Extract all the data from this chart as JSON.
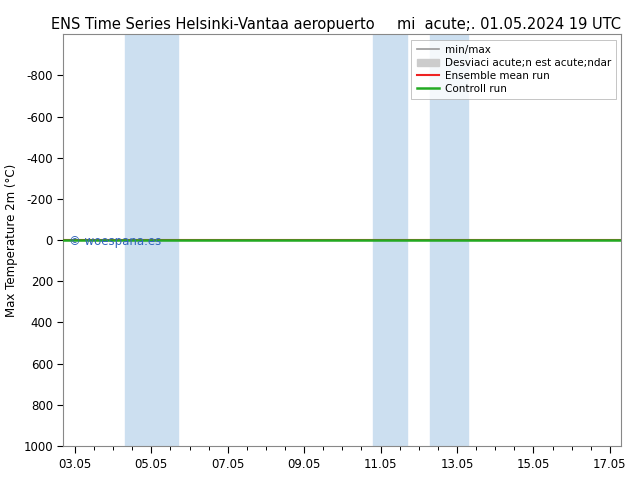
{
  "title": "ENS Time Series Helsinki-Vantaa aeropuerto",
  "title_right": "mi  acute;. 01.05.2024 19 UTC",
  "ylabel": "Max Temperature 2m (°C)",
  "ylim_top": -1000,
  "ylim_bottom": 1000,
  "yticks": [
    -800,
    -600,
    -400,
    -200,
    0,
    200,
    400,
    600,
    800,
    1000
  ],
  "xtick_labels": [
    "03.05",
    "05.05",
    "07.05",
    "09.05",
    "11.05",
    "13.05",
    "15.05",
    "17.05"
  ],
  "xtick_positions": [
    0,
    2,
    4,
    6,
    8,
    10,
    12,
    14
  ],
  "xlim": [
    -0.3,
    14.3
  ],
  "shaded_bands": [
    {
      "xmin": 1.3,
      "xmax": 2.0
    },
    {
      "xmin": 2.0,
      "xmax": 2.7
    },
    {
      "xmin": 7.8,
      "xmax": 8.7
    },
    {
      "xmin": 9.3,
      "xmax": 10.3
    }
  ],
  "green_line_y": 0,
  "red_line_y": 0,
  "background_color": "#ffffff",
  "band_color": "#ccdff0",
  "legend_items": [
    {
      "label": "min/max",
      "type": "line",
      "color": "#999999",
      "lw": 1.2
    },
    {
      "label": "Desviaci acute;n est acute;ndar",
      "type": "patch",
      "color": "#cccccc"
    },
    {
      "label": "Ensemble mean run",
      "type": "line",
      "color": "#ee2222",
      "lw": 1.5
    },
    {
      "label": "Controll run",
      "type": "line",
      "color": "#22aa22",
      "lw": 1.8
    }
  ],
  "watermark": "© woespana.es",
  "watermark_color": "#3366bb",
  "title_fontsize": 10.5,
  "tick_fontsize": 8.5,
  "ylabel_fontsize": 8.5,
  "legend_fontsize": 7.5
}
